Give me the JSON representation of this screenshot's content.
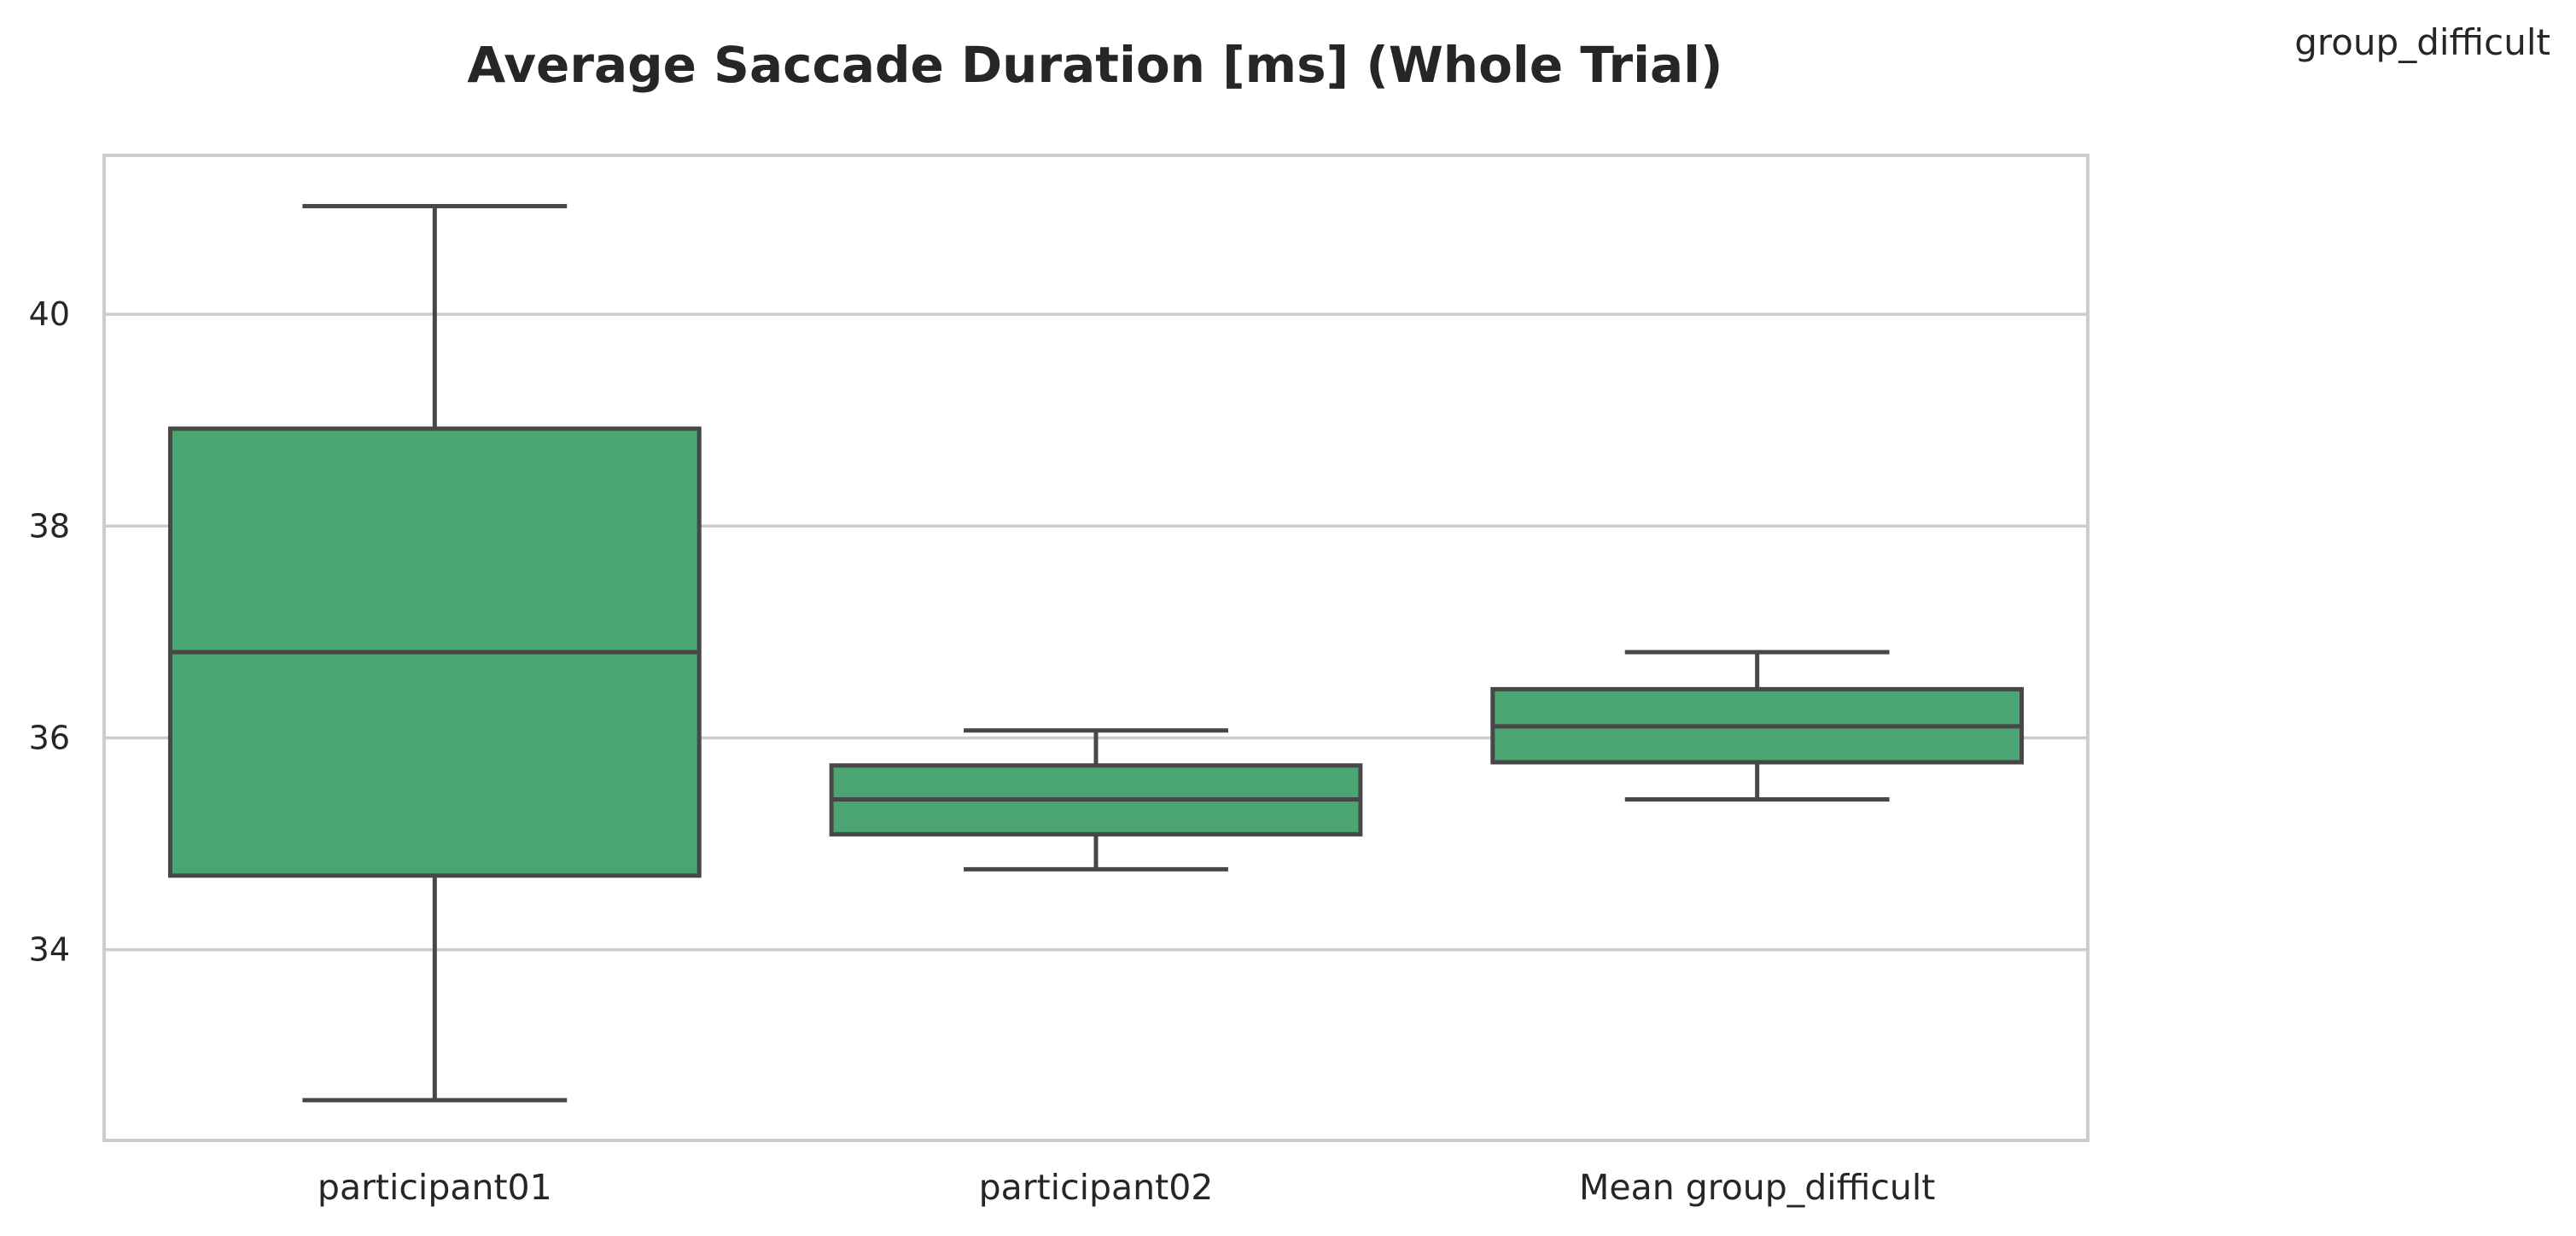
{
  "corner_label": "group_difficult",
  "chart_data": {
    "type": "boxplot",
    "title": "Average Saccade Duration [ms] (Whole Trial)",
    "xlabel": "",
    "ylabel": "",
    "ylim": [
      32.2,
      41.5
    ],
    "yticks": [
      34,
      36,
      38,
      40
    ],
    "grid": "horizontal",
    "box_color": "#4aa572",
    "line_color": "#474747",
    "categories": [
      "participant01",
      "participant02",
      "Mean group_difficult"
    ],
    "boxes": [
      {
        "whisker_low": 32.58,
        "q1": 34.7,
        "median": 36.81,
        "q3": 38.92,
        "whisker_high": 41.02
      },
      {
        "whisker_low": 34.76,
        "q1": 35.09,
        "median": 35.42,
        "q3": 35.74,
        "whisker_high": 36.07
      },
      {
        "whisker_low": 35.42,
        "q1": 35.77,
        "median": 36.11,
        "q3": 36.46,
        "whisker_high": 36.81
      }
    ]
  }
}
